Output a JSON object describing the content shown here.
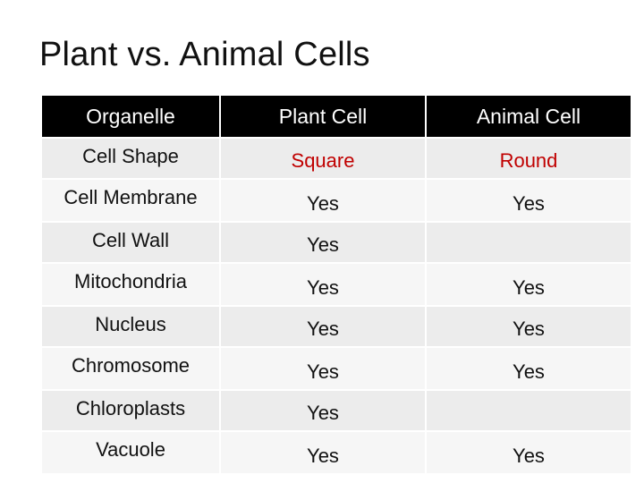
{
  "title": "Plant vs. Animal Cells",
  "table": {
    "headers": [
      "Organelle",
      "Plant Cell",
      "Animal Cell"
    ],
    "rows": [
      {
        "organelle": "Cell Shape",
        "plant": "Square",
        "animal": "Round"
      },
      {
        "organelle": "Cell Membrane",
        "plant": "Yes",
        "animal": "Yes"
      },
      {
        "organelle": "Cell Wall",
        "plant": "Yes",
        "animal": ""
      },
      {
        "organelle": "Mitochondria",
        "plant": "Yes",
        "animal": "Yes"
      },
      {
        "organelle": "Nucleus",
        "plant": "Yes",
        "animal": "Yes"
      },
      {
        "organelle": "Chromosome",
        "plant": "Yes",
        "animal": "Yes"
      },
      {
        "organelle": "Chloroplasts",
        "plant": "Yes",
        "animal": ""
      },
      {
        "organelle": "Vacuole",
        "plant": "Yes",
        "animal": "Yes"
      }
    ]
  },
  "colors": {
    "header_bg": "#000000",
    "header_text": "#ffffff",
    "shape_value_text": "#c00000",
    "row_bg": "#ececec"
  }
}
